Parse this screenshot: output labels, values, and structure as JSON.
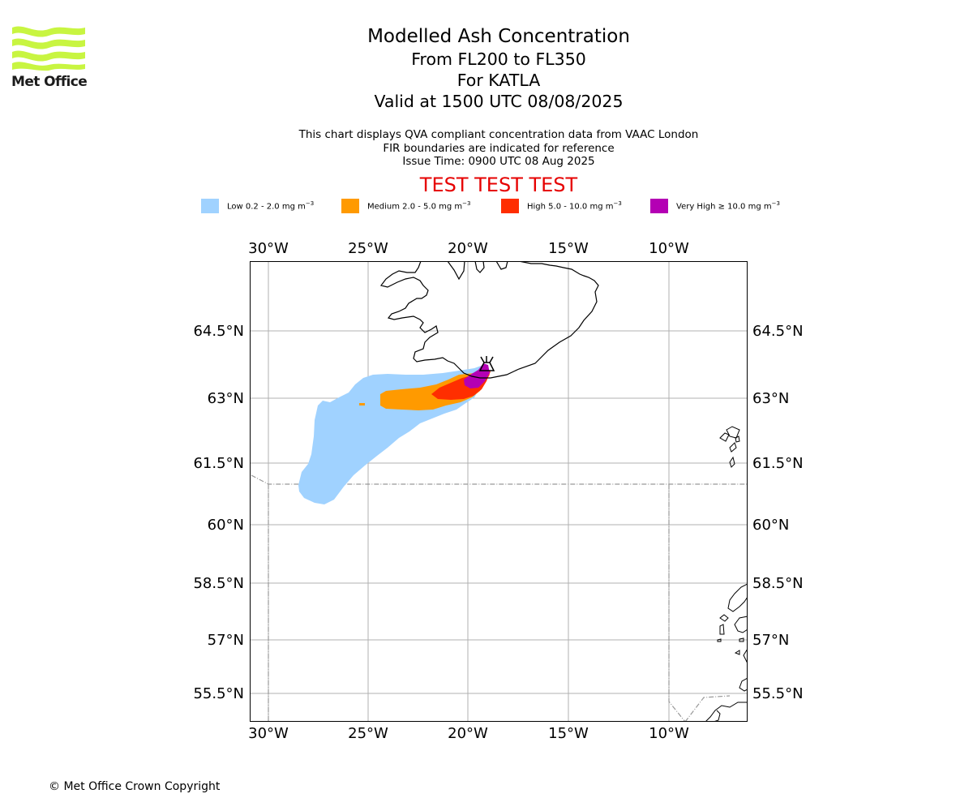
{
  "logo": {
    "text": "Met Office",
    "color": "#c8f541"
  },
  "header": {
    "title": "Modelled Ash Concentration",
    "levels": "From FL200 to FL350",
    "volcano": "For KATLA",
    "valid": "Valid at 1500 UTC 08/08/2025"
  },
  "subtitle": {
    "line1": "This chart displays QVA compliant concentration data from VAAC London",
    "line2": "FIR boundaries are indicated for reference",
    "line3": "Issue Time: 0900 UTC 08 Aug 2025"
  },
  "test_banner": "TEST TEST TEST",
  "legend": [
    {
      "label": "Low 0.2 - 2.0 mg m",
      "color": "#a0d2ff"
    },
    {
      "label": "Medium 2.0 - 5.0 mg m",
      "color": "#ff9a00"
    },
    {
      "label": "High 5.0 - 10.0 mg m",
      "color": "#ff2e00"
    },
    {
      "label": "Very High ≥ 10.0 mg m",
      "color": "#b400b4"
    }
  ],
  "legend_unit_exp": "−3",
  "map": {
    "lon_range": [
      -30.9,
      -6.1
    ],
    "lat_range": [
      54.8,
      66.2
    ],
    "lon_ticks": [
      "30°W",
      "25°W",
      "20°W",
      "15°W",
      "10°W"
    ],
    "lat_ticks": [
      "64.5°N",
      "63°N",
      "61.5°N",
      "60°N",
      "58.5°N",
      "57°N",
      "55.5°N"
    ]
  },
  "footer": {
    "copyright": "© Met Office Crown Copyright"
  }
}
